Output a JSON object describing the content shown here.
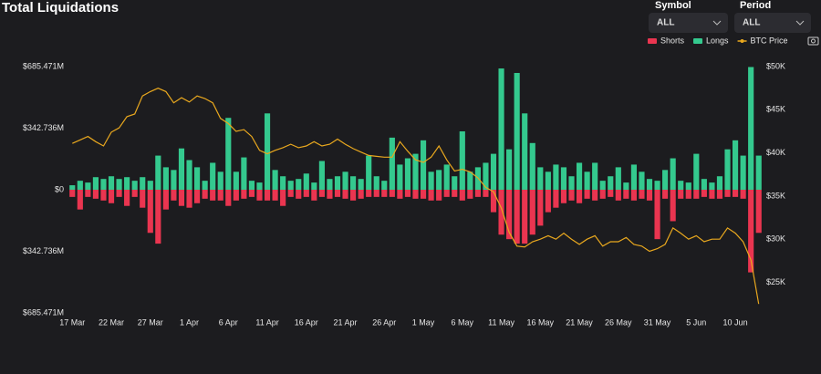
{
  "header": {
    "title": "Total Liquidations"
  },
  "controls": [
    {
      "label": "Symbol",
      "value": "ALL"
    },
    {
      "label": "Period",
      "value": "ALL"
    }
  ],
  "chart_data": {
    "type": "bar",
    "categories": [
      "17 Mar",
      null,
      null,
      null,
      null,
      "22 Mar",
      null,
      null,
      null,
      null,
      "27 Mar",
      null,
      null,
      null,
      null,
      "1 Apr",
      null,
      null,
      null,
      null,
      "6 Apr",
      null,
      null,
      null,
      null,
      "11 Apr",
      null,
      null,
      null,
      null,
      "16 Apr",
      null,
      null,
      null,
      null,
      "21 Apr",
      null,
      null,
      null,
      null,
      "26 Apr",
      null,
      null,
      null,
      null,
      "1 May",
      null,
      null,
      null,
      null,
      "6 May",
      null,
      null,
      null,
      null,
      "11 May",
      null,
      null,
      null,
      null,
      "16 May",
      null,
      null,
      null,
      null,
      "21 May",
      null,
      null,
      null,
      null,
      "26 May",
      null,
      null,
      null,
      null,
      "31 May",
      null,
      null,
      null,
      null,
      "5 Jun",
      null,
      null,
      null,
      null,
      "10 Jun",
      null,
      null,
      null
    ],
    "series": [
      {
        "name": "Shorts",
        "color": "#ea3550",
        "values": [
          -40,
          -110,
          -40,
          -50,
          -60,
          -75,
          -40,
          -90,
          -40,
          -100,
          -240,
          -300,
          -110,
          -60,
          -90,
          -100,
          -75,
          -50,
          -60,
          -60,
          -90,
          -60,
          -50,
          -40,
          -60,
          -60,
          -60,
          -90,
          -40,
          -50,
          -40,
          -60,
          -40,
          -50,
          -40,
          -50,
          -60,
          -50,
          -40,
          -40,
          -40,
          -40,
          -50,
          -40,
          -50,
          -50,
          -60,
          -60,
          -40,
          -40,
          -60,
          -50,
          -40,
          -40,
          -125,
          -250,
          -275,
          -300,
          -300,
          -250,
          -200,
          -125,
          -100,
          -75,
          -60,
          -75,
          -50,
          -60,
          -50,
          -40,
          -60,
          -50,
          -60,
          -50,
          -60,
          -275,
          -50,
          -175,
          -50,
          -50,
          -50,
          -40,
          -50,
          -50,
          -40,
          -40,
          -50,
          -460,
          -240
        ]
      },
      {
        "name": "Longs",
        "color": "#34c98e",
        "values": [
          25,
          50,
          40,
          70,
          60,
          75,
          60,
          70,
          50,
          70,
          50,
          190,
          125,
          110,
          230,
          165,
          125,
          50,
          150,
          100,
          400,
          100,
          180,
          50,
          40,
          425,
          110,
          75,
          50,
          60,
          90,
          40,
          160,
          60,
          75,
          100,
          75,
          60,
          190,
          75,
          50,
          290,
          140,
          175,
          200,
          275,
          100,
          110,
          140,
          75,
          325,
          100,
          125,
          150,
          200,
          675,
          225,
          650,
          425,
          260,
          125,
          100,
          140,
          125,
          75,
          150,
          100,
          150,
          50,
          75,
          125,
          40,
          140,
          100,
          60,
          50,
          110,
          175,
          50,
          40,
          200,
          60,
          40,
          75,
          225,
          275,
          190,
          683,
          190
        ]
      },
      {
        "name": "BTC Price",
        "color": "#e9a81e",
        "type": "line",
        "axis": "y2",
        "values": [
          41100,
          41500,
          41900,
          41300,
          40800,
          42400,
          42900,
          44200,
          44500,
          46600,
          47100,
          47500,
          47100,
          45800,
          46400,
          45900,
          46600,
          46300,
          45800,
          44000,
          43400,
          42500,
          42700,
          41900,
          40300,
          39900,
          40300,
          40600,
          41000,
          40600,
          40800,
          41300,
          40800,
          41000,
          41600,
          41000,
          40500,
          40100,
          39700,
          39600,
          39500,
          39500,
          41300,
          40200,
          39200,
          38900,
          39500,
          40800,
          39200,
          37900,
          38100,
          37800,
          37100,
          36000,
          35500,
          33600,
          30800,
          29200,
          29100,
          29700,
          30000,
          30400,
          30000,
          30700,
          30000,
          29400,
          30000,
          30400,
          29200,
          29700,
          29700,
          30200,
          29400,
          29200,
          28600,
          28900,
          29400,
          31300,
          30700,
          30000,
          30400,
          29700,
          30000,
          30000,
          31300,
          30700,
          29700,
          27600,
          22500
        ]
      }
    ],
    "ylim": [
      -685.471,
      685.471
    ],
    "yticks": [
      {
        "value": 685.471,
        "label": "$685.471M"
      },
      {
        "value": 342.736,
        "label": "$342.736M"
      },
      {
        "value": 0,
        "label": "$0"
      },
      {
        "value": -342.736,
        "label": "$342.736M"
      },
      {
        "value": -685.471,
        "label": "$685.471M"
      }
    ],
    "y2lim": [
      21460,
      50000
    ],
    "y2ticks": [
      {
        "value": 25000,
        "label": "$25K"
      },
      {
        "value": 30000,
        "label": "$30K"
      },
      {
        "value": 35000,
        "label": "$35K"
      },
      {
        "value": 40000,
        "label": "$40K"
      },
      {
        "value": 45000,
        "label": "$45K"
      },
      {
        "value": 50000,
        "label": "$50K"
      }
    ],
    "grid": false,
    "legend": "top-right"
  }
}
